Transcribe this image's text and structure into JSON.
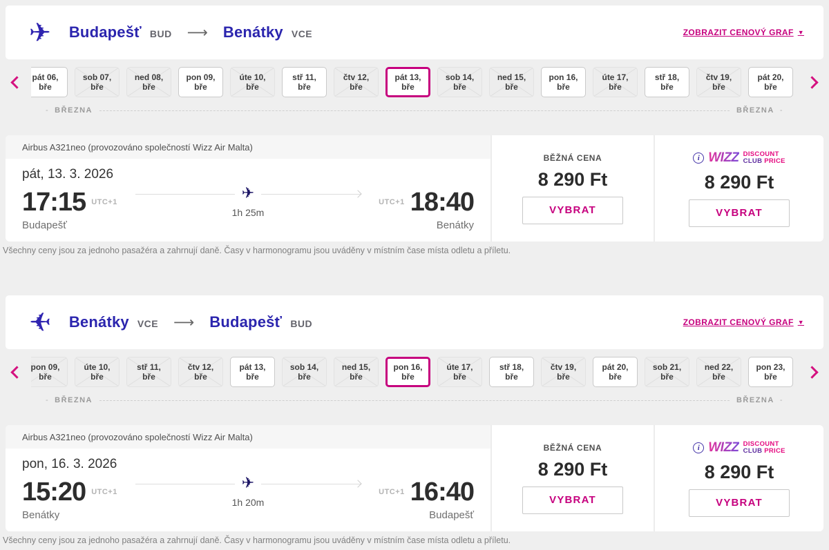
{
  "icons": {
    "plane_glyph": "✈",
    "route_arrow_glyph": "⟶",
    "graph_caret_glyph": "▼",
    "info_glyph": "i"
  },
  "colors": {
    "accent_pink": "#c6007e",
    "indigo": "#2b25ae",
    "plane_navy": "#1b1464",
    "page_bg": "#efefef"
  },
  "sections": [
    {
      "route": {
        "from_city": "Budapešť",
        "from_code": "BUD",
        "to_city": "Benátky",
        "to_code": "VCE"
      },
      "price_graph_link": "ZOBRAZIT CENOVÝ GRAF",
      "month_label_left": "BŘEZNA",
      "month_label_right": "BŘEZNA",
      "dates": [
        {
          "label": "pát 06,",
          "sub": "bře",
          "state": "available"
        },
        {
          "label": "sob 07,",
          "sub": "bře",
          "state": "unavailable"
        },
        {
          "label": "ned 08,",
          "sub": "bře",
          "state": "unavailable"
        },
        {
          "label": "pon 09,",
          "sub": "bře",
          "state": "available"
        },
        {
          "label": "úte 10,",
          "sub": "bře",
          "state": "unavailable"
        },
        {
          "label": "stř 11,",
          "sub": "bře",
          "state": "available"
        },
        {
          "label": "čtv 12,",
          "sub": "bře",
          "state": "unavailable"
        },
        {
          "label": "pát 13,",
          "sub": "bře",
          "state": "selected"
        },
        {
          "label": "sob 14,",
          "sub": "bře",
          "state": "unavailable"
        },
        {
          "label": "ned 15,",
          "sub": "bře",
          "state": "unavailable"
        },
        {
          "label": "pon 16,",
          "sub": "bře",
          "state": "available"
        },
        {
          "label": "úte 17,",
          "sub": "bře",
          "state": "unavailable"
        },
        {
          "label": "stř 18,",
          "sub": "bře",
          "state": "available"
        },
        {
          "label": "čtv 19,",
          "sub": "bře",
          "state": "unavailable"
        },
        {
          "label": "pát 20,",
          "sub": "bře",
          "state": "available"
        }
      ],
      "flight": {
        "aircraft": "Airbus A321neo (provozováno společností Wizz Air Malta)",
        "date": "pát, 13. 3. 2026",
        "dep_time": "17:15",
        "dep_tz": "UTC+1",
        "dep_city": "Budapešť",
        "arr_time": "18:40",
        "arr_tz": "UTC+1",
        "arr_city": "Benátky",
        "duration": "1h 25m"
      },
      "prices": {
        "regular_label": "BĚŽNÁ CENA",
        "regular_price": "8 290 Ft",
        "club_price": "8 290 Ft",
        "select_label": "VYBRAT",
        "club_logo": {
          "wizz": "WIZZ",
          "line1": "DISCOUNT",
          "club": "CLUB ",
          "price": "PRICE"
        }
      },
      "footnote": "Všechny ceny jsou za jednoho pasažéra a zahrnují daně. Časy v harmonogramu jsou uváděny v místním čase místa odletu a příletu."
    },
    {
      "route": {
        "from_city": "Benátky",
        "from_code": "VCE",
        "to_city": "Budapešť",
        "to_code": "BUD"
      },
      "price_graph_link": "ZOBRAZIT CENOVÝ GRAF",
      "month_label_left": "BŘEZNA",
      "month_label_right": "BŘEZNA",
      "dates": [
        {
          "label": "pon 09,",
          "sub": "bře",
          "state": "unavailable"
        },
        {
          "label": "úte 10,",
          "sub": "bře",
          "state": "unavailable"
        },
        {
          "label": "stř 11,",
          "sub": "bře",
          "state": "unavailable"
        },
        {
          "label": "čtv 12,",
          "sub": "bře",
          "state": "unavailable"
        },
        {
          "label": "pát 13,",
          "sub": "bře",
          "state": "available"
        },
        {
          "label": "sob 14,",
          "sub": "bře",
          "state": "unavailable"
        },
        {
          "label": "ned 15,",
          "sub": "bře",
          "state": "unavailable"
        },
        {
          "label": "pon 16,",
          "sub": "bře",
          "state": "selected"
        },
        {
          "label": "úte 17,",
          "sub": "bře",
          "state": "unavailable"
        },
        {
          "label": "stř 18,",
          "sub": "bře",
          "state": "available"
        },
        {
          "label": "čtv 19,",
          "sub": "bře",
          "state": "unavailable"
        },
        {
          "label": "pát 20,",
          "sub": "bře",
          "state": "available"
        },
        {
          "label": "sob 21,",
          "sub": "bře",
          "state": "unavailable"
        },
        {
          "label": "ned 22,",
          "sub": "bře",
          "state": "unavailable"
        },
        {
          "label": "pon 23,",
          "sub": "bře",
          "state": "available"
        }
      ],
      "flight": {
        "aircraft": "Airbus A321neo (provozováno společností Wizz Air Malta)",
        "date": "pon, 16. 3. 2026",
        "dep_time": "15:20",
        "dep_tz": "UTC+1",
        "dep_city": "Benátky",
        "arr_time": "16:40",
        "arr_tz": "UTC+1",
        "arr_city": "Budapešť",
        "duration": "1h 20m"
      },
      "prices": {
        "regular_label": "BĚŽNÁ CENA",
        "regular_price": "8 290 Ft",
        "club_price": "8 290 Ft",
        "select_label": "VYBRAT",
        "club_logo": {
          "wizz": "WIZZ",
          "line1": "DISCOUNT",
          "club": "CLUB ",
          "price": "PRICE"
        }
      },
      "footnote": "Všechny ceny jsou za jednoho pasažéra a zahrnují daně. Časy v harmonogramu jsou uváděny v místním čase místa odletu a příletu."
    }
  ]
}
